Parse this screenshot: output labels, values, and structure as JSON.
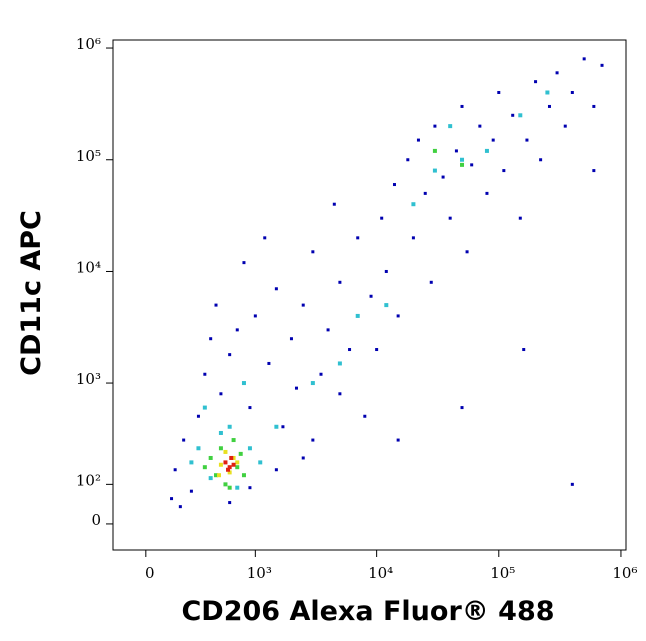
{
  "chart_data": {
    "type": "scatter",
    "x_label": "CD206 Alexa Fluor® 488",
    "y_label": "CD11c APC",
    "xlim": [
      -170,
      1100000
    ],
    "ylim": [
      -62,
      1180000
    ],
    "xticks": [
      0,
      {
        "value": 1000,
        "label": "10³"
      },
      {
        "value": 10000,
        "label": "10⁴"
      },
      {
        "value": 100000,
        "label": "10⁵"
      },
      {
        "value": 1000000,
        "label": "10⁶"
      }
    ],
    "yticks": [
      0,
      {
        "value": 100,
        "label": "10²"
      },
      {
        "value": 1000,
        "label": "10³"
      },
      {
        "value": 10000,
        "label": "10⁴"
      },
      {
        "value": 100000,
        "label": "10⁵"
      },
      {
        "value": 1000000,
        "label": "10⁶"
      }
    ],
    "series": [
      {
        "color": "#0000b0",
        "x": [
          150,
          200,
          250,
          300,
          350,
          400,
          450,
          500,
          600,
          700,
          800,
          900,
          1000,
          1200,
          1300,
          1500,
          1700,
          2000,
          2200,
          2500,
          3000,
          3000,
          3500,
          4000,
          4500,
          5000,
          5000,
          6000,
          7000,
          8000,
          9000,
          10000,
          11000,
          12000,
          14000,
          15000,
          18000,
          20000,
          22000,
          25000,
          28000,
          30000,
          35000,
          40000,
          45000,
          50000,
          55000,
          60000,
          70000,
          80000,
          90000,
          100000,
          110000,
          130000,
          150000,
          170000,
          200000,
          220000,
          260000,
          300000,
          350000,
          400000,
          500000,
          600000,
          700000,
          160000,
          50000,
          15000,
          400000,
          130,
          180,
          600,
          900,
          1500,
          2500,
          600000
        ],
        "y": [
          150,
          300,
          80,
          500,
          1200,
          2500,
          5000,
          800,
          1800,
          3000,
          12000,
          600,
          4000,
          20000,
          1500,
          7000,
          400,
          2500,
          900,
          5000,
          300,
          15000,
          1200,
          3000,
          40000,
          800,
          8000,
          2000,
          20000,
          500,
          6000,
          2000,
          30000,
          10000,
          60000,
          4000,
          100000,
          20000,
          150000,
          50000,
          8000,
          200000,
          70000,
          30000,
          120000,
          300000,
          15000,
          90000,
          200000,
          50000,
          150000,
          400000,
          80000,
          250000,
          30000,
          150000,
          500000,
          100000,
          300000,
          600000,
          200000,
          400000,
          800000,
          300000,
          700000,
          2000,
          600,
          300,
          100,
          60,
          40,
          50,
          90,
          150,
          200,
          80000
        ]
      },
      {
        "color": "#30c0d0",
        "x": [
          300,
          400,
          500,
          700,
          900,
          1100,
          350,
          800,
          1500,
          3000,
          5000,
          7000,
          12000,
          20000,
          30000,
          50000,
          80000,
          150000,
          250000,
          40000,
          250,
          600
        ],
        "y": [
          250,
          120,
          350,
          90,
          250,
          180,
          600,
          1000,
          400,
          1000,
          1500,
          4000,
          5000,
          40000,
          80000,
          100000,
          120000,
          250000,
          400000,
          200000,
          180,
          400
        ]
      },
      {
        "color": "#40d040",
        "x": [
          400,
          450,
          500,
          550,
          650,
          700,
          750,
          800,
          350,
          600,
          50000,
          30000
        ],
        "y": [
          200,
          130,
          250,
          100,
          300,
          160,
          220,
          130,
          160,
          90,
          90000,
          120000
        ]
      },
      {
        "color": "#e8e020",
        "x": [
          500,
          550,
          600,
          650,
          700,
          480
        ],
        "y": [
          170,
          230,
          140,
          200,
          180,
          130
        ]
      },
      {
        "color": "#e02010",
        "x": [
          550,
          600,
          620,
          580,
          650
        ],
        "y": [
          180,
          160,
          200,
          150,
          170
        ]
      }
    ]
  }
}
